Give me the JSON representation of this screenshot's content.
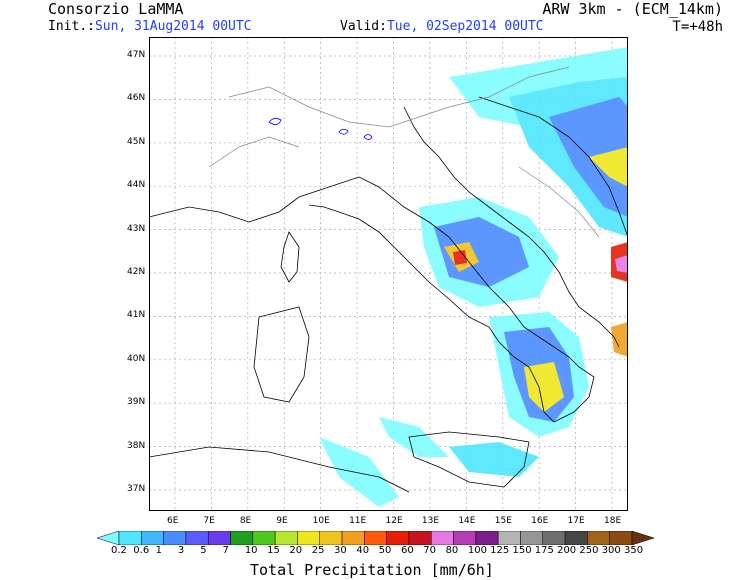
{
  "header": {
    "source": "Consorzio LaMMA",
    "init_label": "Init.:",
    "init_value": "Sun, 31Aug2014 00UTC",
    "valid_label": "Valid:",
    "valid_value": "Tue, 02Sep2014 00UTC",
    "model": "ARW 3km - (ECM_14km)",
    "forecast_step": "T=+48h"
  },
  "map": {
    "lat_labels": [
      "47N",
      "46N",
      "45N",
      "44N",
      "43N",
      "42N",
      "41N",
      "40N",
      "39N",
      "38N",
      "37N"
    ],
    "lon_labels": [
      "6E",
      "7E",
      "8E",
      "9E",
      "10E",
      "11E",
      "12E",
      "13E",
      "14E",
      "15E",
      "16E",
      "17E",
      "18E"
    ],
    "grid": true,
    "precip_areas": [
      {
        "name": "adriatic-north",
        "intensity": "moderate"
      },
      {
        "name": "dalmatian-coast",
        "intensity": "heavy"
      },
      {
        "name": "central-apennines",
        "intensity": "heavy"
      },
      {
        "name": "campania-calabria",
        "intensity": "heavy"
      },
      {
        "name": "southern-tyrrhenian",
        "intensity": "light"
      }
    ]
  },
  "colorbar": {
    "title": "Total Precipitation [mm/6h]",
    "labels": [
      "0.2",
      "0.6",
      "1",
      "3",
      "5",
      "7",
      "10",
      "15",
      "20",
      "25",
      "30",
      "40",
      "50",
      "60",
      "70",
      "80",
      "100",
      "125",
      "150",
      "175",
      "200",
      "250",
      "300",
      "350"
    ],
    "colors": [
      "#7ffcff",
      "#4fe6ff",
      "#3fb8ff",
      "#4a8cff",
      "#5a5cff",
      "#6a3cf0",
      "#1ea01e",
      "#50c81e",
      "#b4e632",
      "#f0e61e",
      "#f0c31e",
      "#f0a01e",
      "#ff5a0a",
      "#e61e0a",
      "#c8141e",
      "#e678e6",
      "#b43cb4",
      "#7a1e8c",
      "#b4b4b4",
      "#969696",
      "#6e6e6e",
      "#464646",
      "#a0641e",
      "#8c4a14",
      "#643214"
    ]
  }
}
